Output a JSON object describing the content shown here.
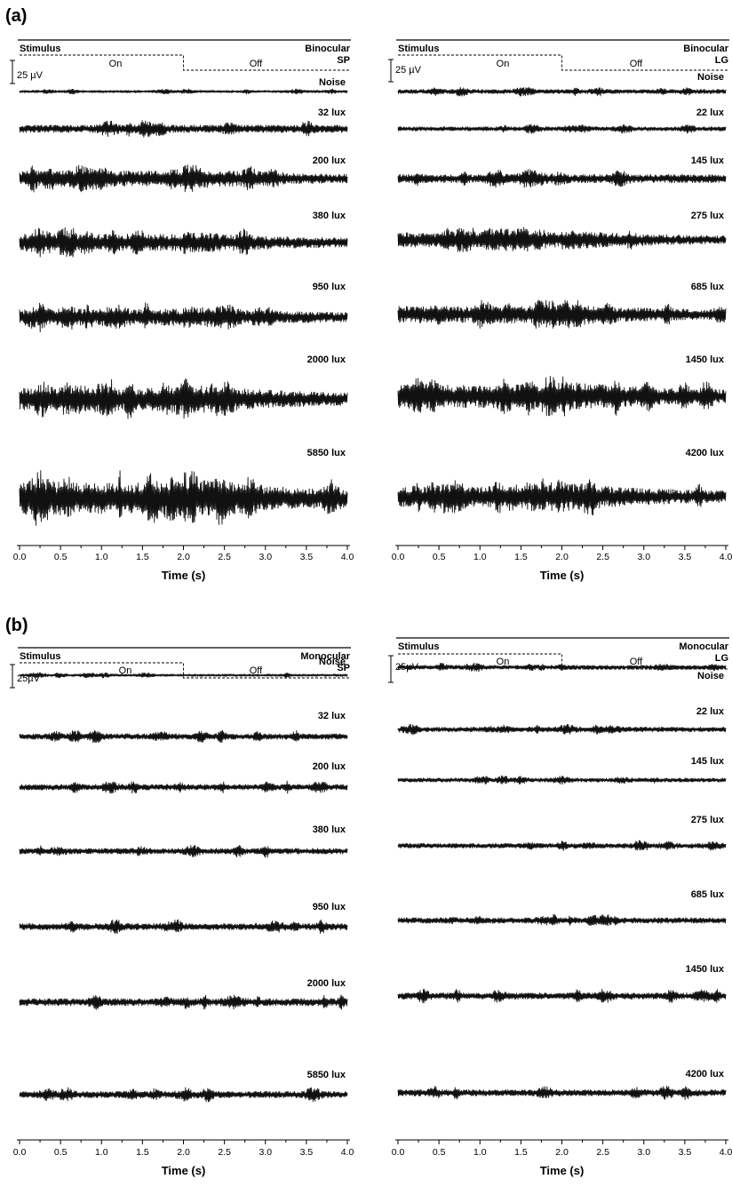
{
  "chart_data": [
    {
      "type": "line",
      "panel": "(a)",
      "condition": "Binocular",
      "group": "SP",
      "stimulus_label": "Stimulus",
      "stimulus_on_label": "On",
      "stimulus_off_label": "Off",
      "stimulus_on_interval_s": [
        0.0,
        2.0
      ],
      "scale_bar_label": "25 µV",
      "scale_bar_uV": 25,
      "xlabel": "Time (s)",
      "xlim": [
        0.0,
        4.0
      ],
      "xticks": [
        "0.0",
        "0.5",
        "1.0",
        "1.5",
        "2.0",
        "2.5",
        "3.0",
        "3.5",
        "4.0"
      ],
      "series": [
        {
          "name": "Noise",
          "peak_amplitude_uV": 3
        },
        {
          "name": "32 lux",
          "peak_amplitude_uV": 9
        },
        {
          "name": "200 lux",
          "peak_amplitude_uV": 15
        },
        {
          "name": "380 lux",
          "peak_amplitude_uV": 16
        },
        {
          "name": "950 lux",
          "peak_amplitude_uV": 16
        },
        {
          "name": "2000 lux",
          "peak_amplitude_uV": 22
        },
        {
          "name": "5850 lux",
          "peak_amplitude_uV": 30
        }
      ]
    },
    {
      "type": "line",
      "panel": "(a)",
      "condition": "Binocular",
      "group": "LG",
      "stimulus_label": "Stimulus",
      "stimulus_on_label": "On",
      "stimulus_off_label": "Off",
      "stimulus_on_interval_s": [
        0.0,
        2.0
      ],
      "scale_bar_label": "25 µV",
      "scale_bar_uV": 25,
      "xlabel": "Time (s)",
      "xlim": [
        0.0,
        4.0
      ],
      "xticks": [
        "0.0",
        "0.5",
        "1.0",
        "1.5",
        "2.0",
        "2.5",
        "3.0",
        "3.5",
        "4.0"
      ],
      "series": [
        {
          "name": "Noise",
          "peak_amplitude_uV": 5
        },
        {
          "name": "22 lux",
          "peak_amplitude_uV": 5
        },
        {
          "name": "145 lux",
          "peak_amplitude_uV": 10
        },
        {
          "name": "275 lux",
          "peak_amplitude_uV": 14
        },
        {
          "name": "685 lux",
          "peak_amplitude_uV": 16
        },
        {
          "name": "1450 lux",
          "peak_amplitude_uV": 22
        },
        {
          "name": "4200 lux",
          "peak_amplitude_uV": 20
        }
      ]
    },
    {
      "type": "line",
      "panel": "(b)",
      "condition": "Monocular",
      "group": "SP",
      "stimulus_label": "Stimulus",
      "stimulus_on_label": "On",
      "stimulus_off_label": "Off",
      "stimulus_on_interval_s": [
        0.0,
        2.0
      ],
      "scale_bar_label": "25µV",
      "scale_bar_uV": 25,
      "xlabel": "Time (s)",
      "xlim": [
        0.0,
        4.0
      ],
      "xticks": [
        "0.0",
        "0.5",
        "1.0",
        "1.5",
        "2.0",
        "2.5",
        "3.0",
        "3.5",
        "4.0"
      ],
      "series": [
        {
          "name": "Noise",
          "peak_amplitude_uV": 3
        },
        {
          "name": "32 lux",
          "peak_amplitude_uV": 7
        },
        {
          "name": "200 lux",
          "peak_amplitude_uV": 7
        },
        {
          "name": "380 lux",
          "peak_amplitude_uV": 7
        },
        {
          "name": "950 lux",
          "peak_amplitude_uV": 8
        },
        {
          "name": "2000 lux",
          "peak_amplitude_uV": 9
        },
        {
          "name": "5850 lux",
          "peak_amplitude_uV": 8
        }
      ]
    },
    {
      "type": "line",
      "panel": "(b)",
      "condition": "Monocular",
      "group": "LG",
      "stimulus_label": "Stimulus",
      "stimulus_on_label": "On",
      "stimulus_off_label": "Off",
      "stimulus_on_interval_s": [
        0.0,
        2.0
      ],
      "scale_bar_label": "25µV",
      "scale_bar_uV": 25,
      "xlabel": "Time (s)",
      "xlim": [
        0.0,
        4.0
      ],
      "xticks": [
        "0.0",
        "0.5",
        "1.0",
        "1.5",
        "2.0",
        "2.5",
        "3.0",
        "3.5",
        "4.0"
      ],
      "series": [
        {
          "name": "Noise",
          "peak_amplitude_uV": 5
        },
        {
          "name": "22 lux",
          "peak_amplitude_uV": 6
        },
        {
          "name": "145 lux",
          "peak_amplitude_uV": 5
        },
        {
          "name": "275 lux",
          "peak_amplitude_uV": 6
        },
        {
          "name": "685 lux",
          "peak_amplitude_uV": 7
        },
        {
          "name": "1450 lux",
          "peak_amplitude_uV": 8
        },
        {
          "name": "4200 lux",
          "peak_amplitude_uV": 8
        }
      ]
    }
  ],
  "panels": [
    {
      "letter": "(a)"
    },
    {
      "letter": "(b)"
    }
  ],
  "colors": {
    "trace": "#111111",
    "axis": "#000000",
    "background": "#ffffff"
  }
}
